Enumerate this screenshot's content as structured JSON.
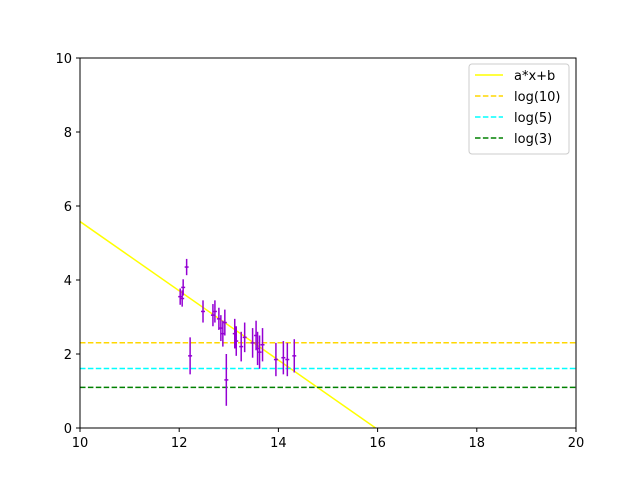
{
  "chart_data": {
    "type": "scatter",
    "title": "",
    "xlabel": "",
    "ylabel": "",
    "xlim": [
      10,
      20
    ],
    "ylim": [
      0,
      10
    ],
    "xticks": [
      "10",
      "12",
      "14",
      "16",
      "18",
      "20"
    ],
    "yticks": [
      "0",
      "2",
      "4",
      "6",
      "8",
      "10"
    ],
    "grid": false,
    "legend_position": "top-right",
    "points": {
      "color": "#9400d3",
      "data": [
        {
          "x": 12.02,
          "y": 3.55,
          "xerr": 0.04,
          "yerr": 0.22
        },
        {
          "x": 12.06,
          "y": 3.5,
          "xerr": 0.04,
          "yerr": 0.22
        },
        {
          "x": 12.08,
          "y": 3.8,
          "xerr": 0.04,
          "yerr": 0.22
        },
        {
          "x": 12.15,
          "y": 4.35,
          "xerr": 0.04,
          "yerr": 0.22
        },
        {
          "x": 12.22,
          "y": 1.95,
          "xerr": 0.04,
          "yerr": 0.5
        },
        {
          "x": 12.48,
          "y": 3.15,
          "xerr": 0.04,
          "yerr": 0.3
        },
        {
          "x": 12.68,
          "y": 3.05,
          "xerr": 0.04,
          "yerr": 0.3
        },
        {
          "x": 12.72,
          "y": 3.15,
          "xerr": 0.04,
          "yerr": 0.3
        },
        {
          "x": 12.8,
          "y": 2.95,
          "xerr": 0.04,
          "yerr": 0.3
        },
        {
          "x": 12.84,
          "y": 2.7,
          "xerr": 0.04,
          "yerr": 0.35
        },
        {
          "x": 12.88,
          "y": 2.55,
          "xerr": 0.04,
          "yerr": 0.35
        },
        {
          "x": 12.92,
          "y": 2.85,
          "xerr": 0.04,
          "yerr": 0.35
        },
        {
          "x": 12.95,
          "y": 1.3,
          "xerr": 0.04,
          "yerr": 0.7
        },
        {
          "x": 13.12,
          "y": 2.55,
          "xerr": 0.04,
          "yerr": 0.4
        },
        {
          "x": 13.15,
          "y": 2.35,
          "xerr": 0.04,
          "yerr": 0.4
        },
        {
          "x": 13.25,
          "y": 2.2,
          "xerr": 0.04,
          "yerr": 0.4
        },
        {
          "x": 13.32,
          "y": 2.45,
          "xerr": 0.04,
          "yerr": 0.4
        },
        {
          "x": 13.48,
          "y": 2.3,
          "xerr": 0.04,
          "yerr": 0.4
        },
        {
          "x": 13.55,
          "y": 2.5,
          "xerr": 0.04,
          "yerr": 0.4
        },
        {
          "x": 13.58,
          "y": 2.15,
          "xerr": 0.04,
          "yerr": 0.45
        },
        {
          "x": 13.62,
          "y": 2.05,
          "xerr": 0.04,
          "yerr": 0.45
        },
        {
          "x": 13.68,
          "y": 2.25,
          "xerr": 0.04,
          "yerr": 0.45
        },
        {
          "x": 13.95,
          "y": 1.85,
          "xerr": 0.04,
          "yerr": 0.45
        },
        {
          "x": 14.1,
          "y": 1.9,
          "xerr": 0.04,
          "yerr": 0.45
        },
        {
          "x": 14.18,
          "y": 1.85,
          "xerr": 0.04,
          "yerr": 0.45
        },
        {
          "x": 14.32,
          "y": 1.95,
          "xerr": 0.04,
          "yerr": 0.45
        }
      ]
    },
    "series": [
      {
        "name": "a*x+b",
        "kind": "line",
        "color": "#ffff00",
        "dash": "solid",
        "x": [
          10,
          15.96
        ],
        "y": [
          5.58,
          0
        ]
      },
      {
        "name": "log(10)",
        "kind": "hline",
        "color": "#ffd700",
        "dash": "dashed",
        "y": 2.302585
      },
      {
        "name": "log(5)",
        "kind": "hline",
        "color": "#00ffff",
        "dash": "dashed",
        "y": 1.609438
      },
      {
        "name": "log(3)",
        "kind": "hline",
        "color": "#008000",
        "dash": "dashed",
        "y": 1.098612
      }
    ]
  }
}
